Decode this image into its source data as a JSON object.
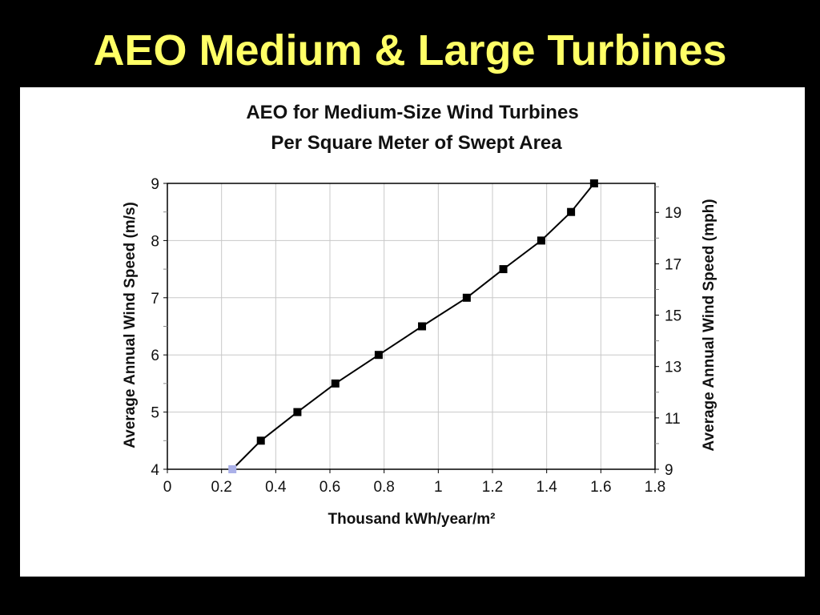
{
  "slide": {
    "title": "AEO Medium & Large Turbines"
  },
  "colors": {
    "background": "#000000",
    "title": "#ffff66",
    "panel": "#ffffff",
    "line": "#000000",
    "grid": "#c8c8c8",
    "first_marker": "#aab0e8"
  },
  "chart_data": {
    "type": "line",
    "title": "AEO for Medium-Size Wind Turbines",
    "subtitle": "Per Square Meter of Swept Area",
    "xlabel": "Thousand kWh/year/m²",
    "ylabel": "Average Annual Wind Speed (m/s)",
    "ylabel_right": "Average Annual Wind Speed (mph)",
    "xlim": [
      0,
      1.8
    ],
    "ylim": [
      4,
      9
    ],
    "ylim_right": [
      9,
      20.13
    ],
    "x_ticks": [
      "0",
      "0.2",
      "0.4",
      "0.6",
      "0.8",
      "1",
      "1.2",
      "1.4",
      "1.6",
      "1.8"
    ],
    "x_tick_values": [
      0,
      0.2,
      0.4,
      0.6,
      0.8,
      1.0,
      1.2,
      1.4,
      1.6,
      1.8
    ],
    "y_ticks": [
      "4",
      "5",
      "6",
      "7",
      "8",
      "9"
    ],
    "y_tick_values": [
      4,
      5,
      6,
      7,
      8,
      9
    ],
    "y_right_ticks": [
      "9",
      "11",
      "13",
      "15",
      "17",
      "19"
    ],
    "y_right_tick_values": [
      9,
      11,
      13,
      15,
      17,
      19
    ],
    "grid": true,
    "series": [
      {
        "x": [
          0.24,
          0.345,
          0.48,
          0.62,
          0.78,
          0.94,
          1.105,
          1.24,
          1.38,
          1.49,
          1.575
        ],
        "y": [
          4.0,
          4.5,
          5.0,
          5.5,
          6.0,
          6.5,
          7.0,
          7.5,
          8.0,
          8.5,
          9.0
        ]
      }
    ]
  }
}
